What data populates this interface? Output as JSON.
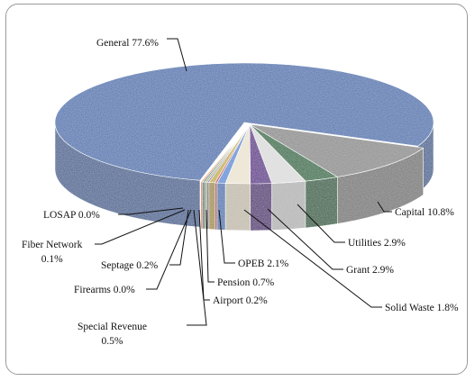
{
  "chart_data": {
    "type": "pie",
    "style": "3d-exploded",
    "title": "",
    "slices": [
      {
        "name": "General",
        "value": 77.6,
        "label": "General 77.6%",
        "color": "#4a72b0"
      },
      {
        "name": "Capital",
        "value": 10.8,
        "label": "Capital 10.8%",
        "color": "#8c8c8c"
      },
      {
        "name": "Utilities",
        "value": 2.9,
        "label": "Utilities 2.9%",
        "color": "#1f6b3a"
      },
      {
        "name": "Grant",
        "value": 2.9,
        "label": "Grant 2.9%",
        "color": "#dcdcdc"
      },
      {
        "name": "Solid Waste",
        "value": 1.8,
        "label": "Solid Waste 1.8%",
        "color": "#5a1a8a"
      },
      {
        "name": "OPEB",
        "value": 2.1,
        "label": "OPEB 2.1%",
        "color": "#ece4d2"
      },
      {
        "name": "Pension",
        "value": 0.7,
        "label": "Pension 0.7%",
        "color": "#5b8fd8"
      },
      {
        "name": "Airport",
        "value": 0.2,
        "label": "Airport 0.2%",
        "color": "#c0504d"
      },
      {
        "name": "Special Revenue",
        "value": 0.5,
        "label": [
          "Special Revenue",
          "0.5%"
        ],
        "color": "#c6b04a"
      },
      {
        "name": "Firearms",
        "value": 0.0,
        "label": "Firearms 0.0%",
        "color": "#7f6aa8"
      },
      {
        "name": "Septage",
        "value": 0.2,
        "label": "Septage 0.2%",
        "color": "#9bbb59"
      },
      {
        "name": "Fiber Network",
        "value": 0.1,
        "label": [
          "Fiber Network",
          "0.1%"
        ],
        "color": "#2c5f8a"
      },
      {
        "name": "LOSAP",
        "value": 0.0,
        "label": "LOSAP 0.0%",
        "color": "#f79646"
      }
    ]
  }
}
